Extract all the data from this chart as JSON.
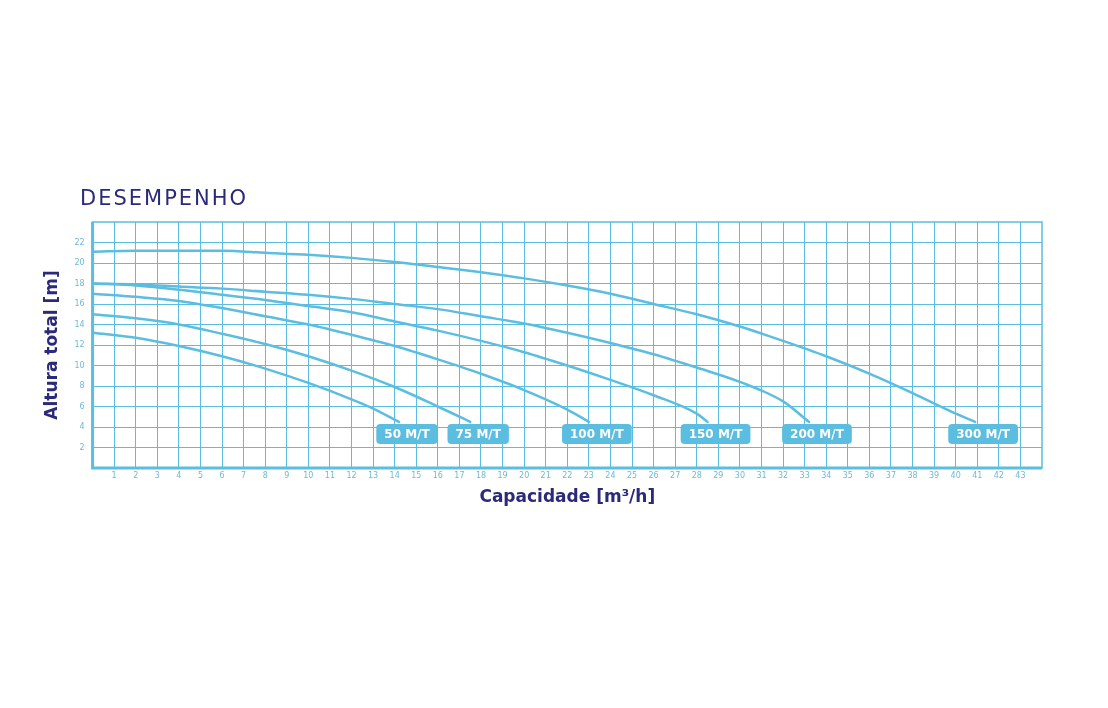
{
  "chart_data": {
    "type": "line",
    "title": "DESEMPENHO",
    "xlabel": "Capacidade [m³/h]",
    "ylabel": "Altura total [m]",
    "xlim": [
      0,
      44
    ],
    "ylim": [
      0,
      24
    ],
    "xticks": [
      1,
      2,
      3,
      4,
      5,
      6,
      7,
      8,
      9,
      10,
      11,
      12,
      13,
      14,
      15,
      16,
      17,
      18,
      19,
      20,
      21,
      22,
      23,
      24,
      25,
      26,
      27,
      28,
      29,
      30,
      31,
      32,
      33,
      34,
      35,
      36,
      37,
      38,
      39,
      40,
      41,
      42,
      43
    ],
    "yticks": [
      2,
      4,
      6,
      8,
      10,
      12,
      14,
      16,
      18,
      20,
      22
    ],
    "grid": true,
    "legend": false,
    "marker": "none",
    "line_style": "solid",
    "series": [
      {
        "name": "50 M/T",
        "color": "#5bbde0",
        "x": [
          0,
          2,
          4,
          6,
          8,
          10,
          12,
          13,
          14.2
        ],
        "values": [
          13.2,
          12.7,
          11.9,
          10.9,
          9.7,
          8.3,
          6.7,
          5.8,
          4.5
        ]
      },
      {
        "name": "75 M/T",
        "color": "#5bbde0",
        "x": [
          0,
          2,
          4,
          6,
          8,
          10,
          12,
          14,
          16,
          17.5
        ],
        "values": [
          15,
          14.6,
          14,
          13.1,
          12.1,
          10.9,
          9.5,
          7.9,
          6,
          4.5
        ]
      },
      {
        "name": "100 M/T",
        "color": "#5bbde0",
        "x": [
          0,
          2,
          4,
          6,
          8,
          10,
          12,
          14,
          16,
          18,
          20,
          22,
          23
        ],
        "values": [
          17,
          16.7,
          16.3,
          15.6,
          14.8,
          14,
          13,
          11.9,
          10.6,
          9.2,
          7.6,
          5.7,
          4.5
        ]
      },
      {
        "name": "150 M/T",
        "color": "#5bbde0",
        "x": [
          0,
          2,
          4,
          6,
          8,
          10,
          12,
          14,
          16,
          18,
          20,
          22,
          24,
          26,
          28,
          28.5
        ],
        "values": [
          18,
          17.8,
          17.4,
          16.9,
          16.4,
          15.8,
          15.2,
          14.3,
          13.4,
          12.4,
          11.3,
          10,
          8.6,
          7.1,
          5.3,
          4.5
        ]
      },
      {
        "name": "200 M/T",
        "color": "#5bbde0",
        "x": [
          0,
          2,
          4,
          6,
          8,
          10,
          12,
          14,
          16,
          18,
          20,
          22,
          24,
          26,
          28,
          30,
          32,
          33.2
        ],
        "values": [
          18,
          17.9,
          17.7,
          17.5,
          17.2,
          16.9,
          16.5,
          16,
          15.5,
          14.8,
          14.1,
          13.2,
          12.2,
          11.1,
          9.8,
          8.4,
          6.5,
          4.5
        ]
      },
      {
        "name": "300 M/T",
        "color": "#5bbde0",
        "x": [
          0,
          2,
          4,
          6,
          8,
          10,
          12,
          14,
          16,
          18,
          20,
          22,
          24,
          26,
          28,
          30,
          32,
          34,
          36,
          38,
          40,
          40.9
        ],
        "values": [
          21.1,
          21.2,
          21.2,
          21.2,
          21,
          20.8,
          20.5,
          20.1,
          19.6,
          19.1,
          18.5,
          17.8,
          17,
          16,
          15,
          13.8,
          12.4,
          10.9,
          9.2,
          7.3,
          5.3,
          4.5
        ]
      }
    ]
  }
}
